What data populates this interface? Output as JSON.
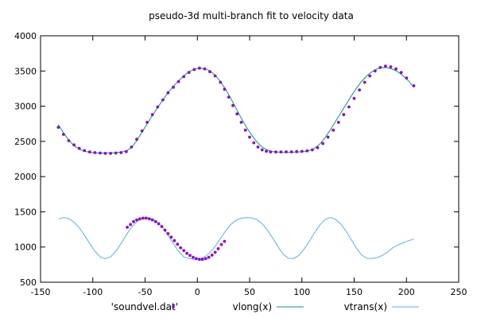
{
  "chart_data": {
    "type": "scatter",
    "title": "pseudo-3d multi-branch fit to velocity data",
    "xlabel": "",
    "ylabel": "",
    "xlim": [
      -150,
      250
    ],
    "ylim": [
      500,
      4000
    ],
    "xticks": [
      -150,
      -100,
      -50,
      0,
      50,
      100,
      150,
      200,
      250
    ],
    "yticks": [
      500,
      1000,
      1500,
      2000,
      2500,
      3000,
      3500,
      4000
    ],
    "grid": false,
    "legend_position": "bottom",
    "series": [
      {
        "name": "'soundvel.dat'",
        "kind": "points",
        "color": "#9400d3",
        "points": [
          [
            -133,
            2700
          ],
          [
            -128,
            2600
          ],
          [
            -123,
            2510
          ],
          [
            -118,
            2450
          ],
          [
            -113,
            2400
          ],
          [
            -108,
            2370
          ],
          [
            -103,
            2350
          ],
          [
            -98,
            2340
          ],
          [
            -93,
            2335
          ],
          [
            -88,
            2330
          ],
          [
            -83,
            2330
          ],
          [
            -78,
            2335
          ],
          [
            -73,
            2340
          ],
          [
            -68,
            2355
          ],
          [
            -63,
            2420
          ],
          [
            -58,
            2530
          ],
          [
            -53,
            2650
          ],
          [
            -48,
            2770
          ],
          [
            -43,
            2880
          ],
          [
            -38,
            2990
          ],
          [
            -33,
            3090
          ],
          [
            -28,
            3190
          ],
          [
            -23,
            3270
          ],
          [
            -18,
            3350
          ],
          [
            -13,
            3420
          ],
          [
            -8,
            3480
          ],
          [
            -3,
            3520
          ],
          [
            2,
            3540
          ],
          [
            7,
            3530
          ],
          [
            12,
            3490
          ],
          [
            17,
            3430
          ],
          [
            22,
            3340
          ],
          [
            26,
            3240
          ],
          [
            30,
            3130
          ],
          [
            34,
            3010
          ],
          [
            38,
            2890
          ],
          [
            42,
            2770
          ],
          [
            46,
            2660
          ],
          [
            50,
            2560
          ],
          [
            54,
            2480
          ],
          [
            58,
            2420
          ],
          [
            62,
            2380
          ],
          [
            66,
            2360
          ],
          [
            70,
            2350
          ],
          [
            75,
            2350
          ],
          [
            80,
            2350
          ],
          [
            85,
            2352
          ],
          [
            90,
            2352
          ],
          [
            95,
            2355
          ],
          [
            100,
            2358
          ],
          [
            105,
            2365
          ],
          [
            110,
            2380
          ],
          [
            115,
            2410
          ],
          [
            120,
            2470
          ],
          [
            125,
            2560
          ],
          [
            130,
            2660
          ],
          [
            135,
            2770
          ],
          [
            140,
            2880
          ],
          [
            145,
            2990
          ],
          [
            150,
            3110
          ],
          [
            155,
            3230
          ],
          [
            160,
            3340
          ],
          [
            165,
            3430
          ],
          [
            170,
            3500
          ],
          [
            175,
            3550
          ],
          [
            180,
            3570
          ],
          [
            185,
            3560
          ],
          [
            190,
            3530
          ],
          [
            195,
            3480
          ],
          [
            200,
            3400
          ],
          [
            207,
            3290
          ]
        ]
      },
      {
        "name": "'soundvel.dat'",
        "kind": "points",
        "color": "#9400d3",
        "points": [
          [
            -67,
            1280
          ],
          [
            -64,
            1320
          ],
          [
            -61,
            1360
          ],
          [
            -58,
            1385
          ],
          [
            -55,
            1400
          ],
          [
            -52,
            1410
          ],
          [
            -49,
            1410
          ],
          [
            -46,
            1400
          ],
          [
            -43,
            1385
          ],
          [
            -40,
            1360
          ],
          [
            -37,
            1330
          ],
          [
            -34,
            1290
          ],
          [
            -31,
            1240
          ],
          [
            -28,
            1190
          ],
          [
            -25,
            1140
          ],
          [
            -22,
            1090
          ],
          [
            -19,
            1040
          ],
          [
            -16,
            990
          ],
          [
            -13,
            950
          ],
          [
            -10,
            910
          ],
          [
            -7,
            880
          ],
          [
            -4,
            855
          ],
          [
            -1,
            835
          ],
          [
            2,
            825
          ],
          [
            5,
            825
          ],
          [
            8,
            835
          ],
          [
            11,
            855
          ],
          [
            14,
            885
          ],
          [
            17,
            925
          ],
          [
            20,
            975
          ],
          [
            23,
            1035
          ],
          [
            26,
            1080
          ]
        ]
      },
      {
        "name": "vlong(x)",
        "kind": "line",
        "color": "#009e73",
        "points": [
          [
            -133,
            2740
          ],
          [
            -128,
            2620
          ],
          [
            -123,
            2520
          ],
          [
            -118,
            2440
          ],
          [
            -113,
            2390
          ],
          [
            -108,
            2360
          ],
          [
            -103,
            2345
          ],
          [
            -98,
            2338
          ],
          [
            -93,
            2335
          ],
          [
            -88,
            2335
          ],
          [
            -83,
            2336
          ],
          [
            -78,
            2340
          ],
          [
            -73,
            2348
          ],
          [
            -68,
            2365
          ],
          [
            -63,
            2410
          ],
          [
            -58,
            2510
          ],
          [
            -53,
            2630
          ],
          [
            -48,
            2750
          ],
          [
            -43,
            2870
          ],
          [
            -38,
            2980
          ],
          [
            -33,
            3090
          ],
          [
            -28,
            3190
          ],
          [
            -23,
            3280
          ],
          [
            -18,
            3360
          ],
          [
            -13,
            3430
          ],
          [
            -8,
            3490
          ],
          [
            -3,
            3525
          ],
          [
            2,
            3540
          ],
          [
            7,
            3535
          ],
          [
            12,
            3500
          ],
          [
            17,
            3440
          ],
          [
            22,
            3350
          ],
          [
            27,
            3240
          ],
          [
            32,
            3110
          ],
          [
            37,
            2970
          ],
          [
            42,
            2830
          ],
          [
            47,
            2700
          ],
          [
            52,
            2590
          ],
          [
            57,
            2490
          ],
          [
            62,
            2420
          ],
          [
            67,
            2375
          ],
          [
            72,
            2355
          ],
          [
            77,
            2348
          ],
          [
            82,
            2346
          ],
          [
            87,
            2346
          ],
          [
            92,
            2347
          ],
          [
            97,
            2350
          ],
          [
            102,
            2356
          ],
          [
            107,
            2370
          ],
          [
            112,
            2400
          ],
          [
            117,
            2460
          ],
          [
            122,
            2550
          ],
          [
            127,
            2660
          ],
          [
            132,
            2780
          ],
          [
            137,
            2900
          ],
          [
            142,
            3020
          ],
          [
            147,
            3140
          ],
          [
            152,
            3250
          ],
          [
            157,
            3350
          ],
          [
            162,
            3430
          ],
          [
            167,
            3490
          ],
          [
            172,
            3530
          ],
          [
            177,
            3548
          ],
          [
            182,
            3545
          ],
          [
            187,
            3525
          ],
          [
            192,
            3485
          ],
          [
            197,
            3430
          ],
          [
            202,
            3360
          ],
          [
            207,
            3270
          ]
        ]
      },
      {
        "name": "vtrans(x)",
        "kind": "line",
        "color": "#56b4e9",
        "points": [
          [
            -133,
            1400
          ],
          [
            -128,
            1418
          ],
          [
            -123,
            1405
          ],
          [
            -118,
            1355
          ],
          [
            -113,
            1275
          ],
          [
            -108,
            1170
          ],
          [
            -103,
            1050
          ],
          [
            -98,
            940
          ],
          [
            -93,
            860
          ],
          [
            -88,
            835
          ],
          [
            -83,
            860
          ],
          [
            -78,
            940
          ],
          [
            -73,
            1050
          ],
          [
            -68,
            1170
          ],
          [
            -63,
            1280
          ],
          [
            -58,
            1360
          ],
          [
            -53,
            1405
          ],
          [
            -48,
            1418
          ],
          [
            -43,
            1400
          ],
          [
            -38,
            1355
          ],
          [
            -33,
            1275
          ],
          [
            -28,
            1170
          ],
          [
            -23,
            1050
          ],
          [
            -18,
            940
          ],
          [
            -13,
            860
          ],
          [
            -8,
            835
          ],
          [
            -3,
            825
          ],
          [
            2,
            830
          ],
          [
            7,
            860
          ],
          [
            12,
            920
          ],
          [
            17,
            1010
          ],
          [
            22,
            1120
          ],
          [
            27,
            1230
          ],
          [
            32,
            1320
          ],
          [
            37,
            1380
          ],
          [
            42,
            1410
          ],
          [
            47,
            1418
          ],
          [
            52,
            1415
          ],
          [
            57,
            1390
          ],
          [
            62,
            1330
          ],
          [
            67,
            1240
          ],
          [
            72,
            1130
          ],
          [
            77,
            1010
          ],
          [
            82,
            900
          ],
          [
            87,
            840
          ],
          [
            92,
            838
          ],
          [
            97,
            880
          ],
          [
            102,
            970
          ],
          [
            107,
            1080
          ],
          [
            112,
            1200
          ],
          [
            117,
            1310
          ],
          [
            122,
            1390
          ],
          [
            127,
            1418
          ],
          [
            132,
            1395
          ],
          [
            137,
            1330
          ],
          [
            142,
            1230
          ],
          [
            147,
            1110
          ],
          [
            152,
            990
          ],
          [
            157,
            890
          ],
          [
            162,
            840
          ],
          [
            167,
            835
          ],
          [
            172,
            850
          ],
          [
            177,
            880
          ],
          [
            182,
            930
          ],
          [
            187,
            990
          ],
          [
            192,
            1030
          ],
          [
            197,
            1060
          ],
          [
            202,
            1090
          ],
          [
            207,
            1110
          ]
        ]
      }
    ],
    "legend": [
      {
        "label": "'soundvel.dat'",
        "kind": "points",
        "color": "#9400d3"
      },
      {
        "label": "vlong(x)",
        "kind": "line",
        "color": "#009e73"
      },
      {
        "label": "vtrans(x)",
        "kind": "line",
        "color": "#56b4e9"
      }
    ]
  }
}
